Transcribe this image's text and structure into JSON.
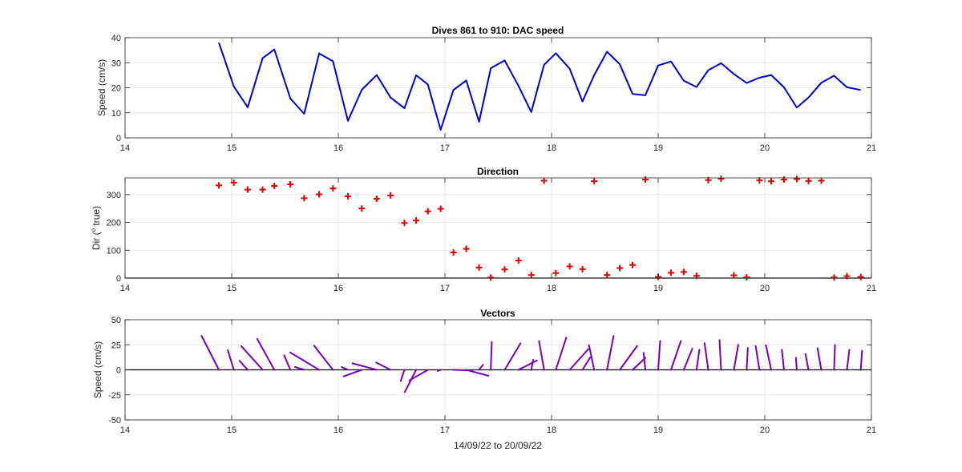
{
  "chart_data": [
    {
      "type": "line",
      "title": "Dives 861 to 910: DAC speed",
      "xlabel": "",
      "ylabel": "Speed (cm/s)",
      "xlim": [
        14,
        21
      ],
      "ylim": [
        0,
        40
      ],
      "xticks": [
        14,
        15,
        16,
        17,
        18,
        19,
        20,
        21
      ],
      "yticks": [
        0,
        10,
        20,
        30,
        40
      ],
      "grid": true,
      "series": [
        {
          "color": "#0000cc",
          "x": [
            14.88,
            15.02,
            15.15,
            15.29,
            15.4,
            15.55,
            15.68,
            15.82,
            15.95,
            16.09,
            16.22,
            16.36,
            16.49,
            16.62,
            16.73,
            16.84,
            16.96,
            17.08,
            17.2,
            17.32,
            17.43,
            17.56,
            17.69,
            17.81,
            17.93,
            18.04,
            18.17,
            18.29,
            18.4,
            18.52,
            18.64,
            18.76,
            18.88,
            19.0,
            19.12,
            19.24,
            19.36,
            19.47,
            19.59,
            19.71,
            19.83,
            19.95,
            20.06,
            20.18,
            20.3,
            20.41,
            20.53,
            20.65,
            20.77,
            20.9
          ],
          "y": [
            38,
            20.5,
            12.2,
            31.8,
            35.3,
            15.7,
            9.6,
            33.7,
            30.6,
            6.8,
            19.2,
            25.1,
            16.1,
            11.8,
            25,
            21.3,
            3.2,
            19.1,
            22.9,
            6.4,
            27.8,
            30.9,
            20.7,
            10.3,
            29.2,
            33.8,
            27.6,
            14.5,
            25.1,
            34.4,
            29.4,
            17.5,
            17,
            28.9,
            30.5,
            22.8,
            20.3,
            27,
            29.8,
            25.5,
            21.9,
            24,
            25.1,
            20.2,
            12.1,
            16.1,
            22,
            24.8,
            20.2,
            19.1
          ]
        }
      ]
    },
    {
      "type": "scatter",
      "title": "Direction",
      "xlabel": "",
      "ylabel": "Dir (o true)",
      "ylabel_main": "Dir (",
      "ylabel_sup": "o",
      "ylabel_tail": " true)",
      "xlim": [
        14,
        21
      ],
      "ylim": [
        0,
        360
      ],
      "xticks": [
        14,
        15,
        16,
        17,
        18,
        19,
        20,
        21
      ],
      "yticks": [
        0,
        100,
        200,
        300
      ],
      "grid": true,
      "series": [
        {
          "color": "#e00000",
          "marker": "+",
          "x": [
            14.88,
            15.02,
            15.15,
            15.29,
            15.4,
            15.55,
            15.68,
            15.82,
            15.95,
            16.09,
            16.22,
            16.36,
            16.49,
            16.62,
            16.73,
            16.84,
            16.96,
            17.08,
            17.2,
            17.32,
            17.43,
            17.56,
            17.69,
            17.81,
            17.93,
            18.04,
            18.17,
            18.29,
            18.4,
            18.52,
            18.64,
            18.76,
            18.88,
            19.0,
            19.12,
            19.24,
            19.36,
            19.47,
            19.59,
            19.71,
            19.83,
            19.95,
            20.06,
            20.18,
            20.3,
            20.41,
            20.53,
            20.65,
            20.77,
            20.9
          ],
          "y": [
            333,
            343,
            318,
            318,
            331,
            337,
            287,
            301,
            322,
            294,
            250,
            285,
            297,
            198,
            207,
            240,
            249,
            92,
            105,
            38,
            2,
            31,
            63,
            11,
            350,
            18,
            42,
            32,
            348,
            11,
            36,
            47,
            354,
            4,
            19,
            22,
            8,
            352,
            357,
            10,
            3,
            351,
            348,
            354,
            356,
            349,
            350,
            2,
            7,
            4
          ]
        }
      ]
    },
    {
      "type": "vectors",
      "title": "Vectors",
      "xlabel": "14/09/22 to 20/09/22",
      "ylabel": "Speed (cm/s)",
      "xlim": [
        14,
        21
      ],
      "ylim": [
        -50,
        50
      ],
      "xticks": [
        14,
        15,
        16,
        17,
        18,
        19,
        20,
        21
      ],
      "yticks": [
        -50,
        -25,
        0,
        25,
        50
      ],
      "grid": true,
      "note": "each stick starts at (dive time, 0) and points along the direction with length equal to the speed",
      "series": [
        {
          "color": "#7a00b8",
          "x": [
            14.88,
            15.02,
            15.15,
            15.29,
            15.4,
            15.55,
            15.68,
            15.82,
            15.95,
            16.09,
            16.22,
            16.36,
            16.49,
            16.62,
            16.73,
            16.84,
            16.96,
            17.08,
            17.2,
            17.32,
            17.43,
            17.56,
            17.69,
            17.81,
            17.93,
            18.04,
            18.17,
            18.29,
            18.4,
            18.52,
            18.64,
            18.76,
            18.88,
            19.0,
            19.12,
            19.24,
            19.36,
            19.47,
            19.59,
            19.71,
            19.83,
            19.95,
            20.06,
            20.18,
            20.3,
            20.41,
            20.53,
            20.65,
            20.77,
            20.9
          ],
          "speed": [
            38,
            20.5,
            12.2,
            31.8,
            35.3,
            15.7,
            9.6,
            33.7,
            30.6,
            6.8,
            19.2,
            25.1,
            16.1,
            11.8,
            25,
            21.3,
            3.2,
            19.1,
            22.9,
            6.4,
            27.8,
            30.9,
            20.7,
            10.3,
            29.2,
            33.8,
            27.6,
            14.5,
            25.1,
            34.4,
            29.4,
            17.5,
            17,
            28.9,
            30.5,
            22.8,
            20.3,
            27,
            29.8,
            25.5,
            21.9,
            24,
            25.1,
            20.2,
            12.1,
            16.1,
            22,
            24.8,
            20.2,
            19.1
          ],
          "direction": [
            333,
            343,
            318,
            318,
            331,
            337,
            287,
            301,
            322,
            294,
            250,
            285,
            297,
            198,
            207,
            240,
            249,
            92,
            105,
            38,
            2,
            31,
            63,
            11,
            350,
            18,
            42,
            32,
            348,
            11,
            36,
            47,
            354,
            4,
            19,
            22,
            8,
            352,
            357,
            10,
            3,
            351,
            348,
            354,
            356,
            349,
            350,
            2,
            7,
            4
          ]
        }
      ]
    }
  ]
}
